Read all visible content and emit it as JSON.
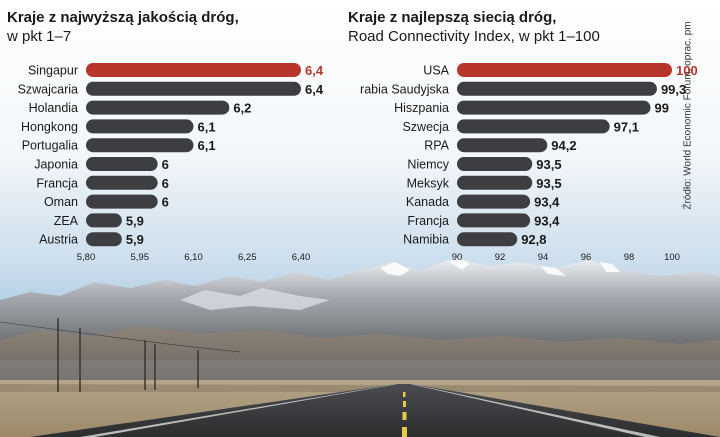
{
  "colors": {
    "highlight": "#b8352c",
    "bar": "#3c3e42",
    "highlight_text": "#b8352c",
    "text": "#1a1a1a"
  },
  "left": {
    "title": "Kraje z najwyższą jakością dróg,",
    "subtitle": "w pkt 1–7"
  },
  "right": {
    "title": "Kraje z najlepszą siecią dróg,",
    "subtitle": "Road Connectivity Index, w pkt 1–100"
  },
  "source": "Źródło: World Economic Forum, oprac. pm",
  "chart_data": [
    {
      "type": "bar",
      "orientation": "horizontal",
      "title": "Kraje z najwyższą jakością dróg,",
      "subtitle": "w pkt 1–7",
      "categories": [
        "Singapur",
        "Szwajcaria",
        "Holandia",
        "Hongkong",
        "Portugalia",
        "Japonia",
        "Francja",
        "Oman",
        "ZEA",
        "Austria"
      ],
      "values": [
        6.4,
        6.4,
        6.2,
        6.1,
        6.1,
        6.0,
        6.0,
        6.0,
        5.9,
        5.9
      ],
      "value_labels": [
        "6,4",
        "6,4",
        "6,2",
        "6,1",
        "6,1",
        "6",
        "6",
        "6",
        "5,9",
        "5,9"
      ],
      "highlight_index": 0,
      "xlim": [
        5.8,
        6.4
      ],
      "ticks": [
        5.8,
        5.95,
        6.1,
        6.25,
        6.4
      ],
      "tick_labels": [
        "5,80",
        "5,95",
        "6,10",
        "6,25",
        "6,40"
      ],
      "grid": false
    },
    {
      "type": "bar",
      "orientation": "horizontal",
      "title": "Kraje z najlepszą siecią dróg,",
      "subtitle": "Road Connectivity Index, w pkt 1–100",
      "categories": [
        "USA",
        "Arabia Saudyjska",
        "Hiszpania",
        "Szwecja",
        "RPA",
        "Niemcy",
        "Meksyk",
        "Kanada",
        "Francja",
        "Namibia"
      ],
      "values": [
        100,
        99.3,
        99,
        97.1,
        94.2,
        93.5,
        93.5,
        93.4,
        93.4,
        92.8
      ],
      "value_labels": [
        "100",
        "99,3",
        "99",
        "97,1",
        "94,2",
        "93,5",
        "93,5",
        "93,4",
        "93,4",
        "92,8"
      ],
      "highlight_index": 0,
      "xlim": [
        90,
        100
      ],
      "ticks": [
        90,
        92,
        94,
        96,
        98,
        100
      ],
      "tick_labels": [
        "90",
        "92",
        "94",
        "96",
        "98",
        "100"
      ],
      "grid": false
    }
  ]
}
